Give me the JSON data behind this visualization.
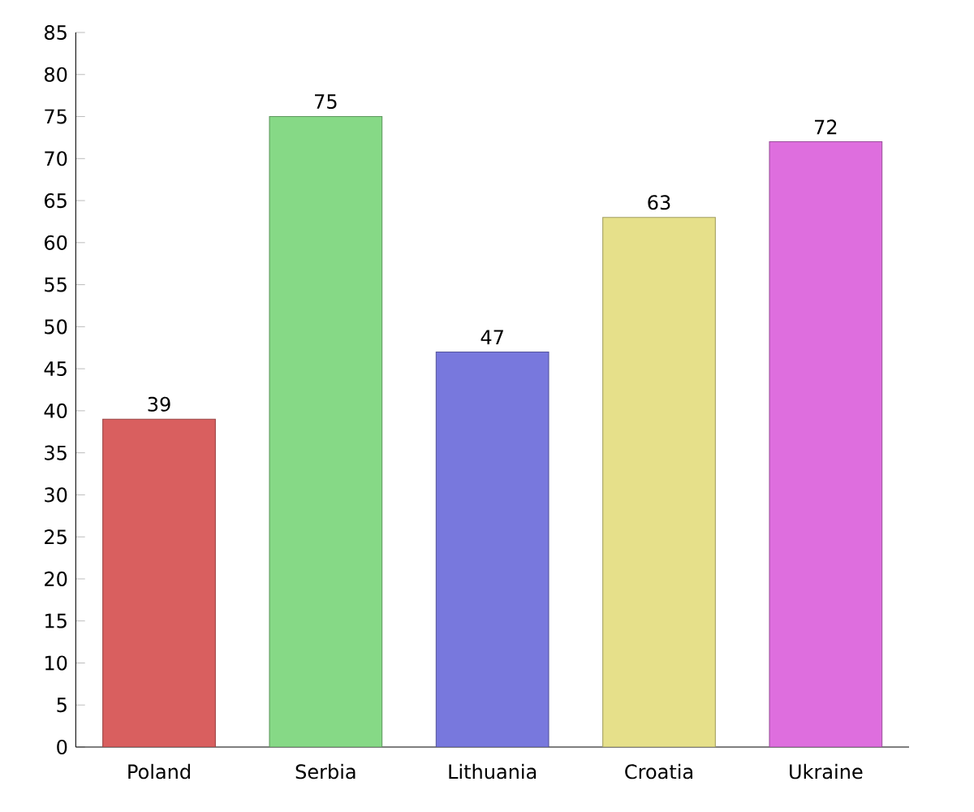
{
  "chart_data": {
    "type": "bar",
    "categories": [
      "Poland",
      "Serbia",
      "Lithuania",
      "Croatia",
      "Ukraine"
    ],
    "values": [
      39,
      75,
      47,
      63,
      72
    ],
    "colors": [
      "#d95f5f",
      "#86d986",
      "#7878dd",
      "#e6e08a",
      "#de6ede"
    ],
    "ylim": [
      0,
      85
    ],
    "yticks": [
      0,
      5,
      10,
      15,
      20,
      25,
      30,
      35,
      40,
      45,
      50,
      55,
      60,
      65,
      70,
      75,
      80,
      85
    ],
    "data_labels": true
  }
}
